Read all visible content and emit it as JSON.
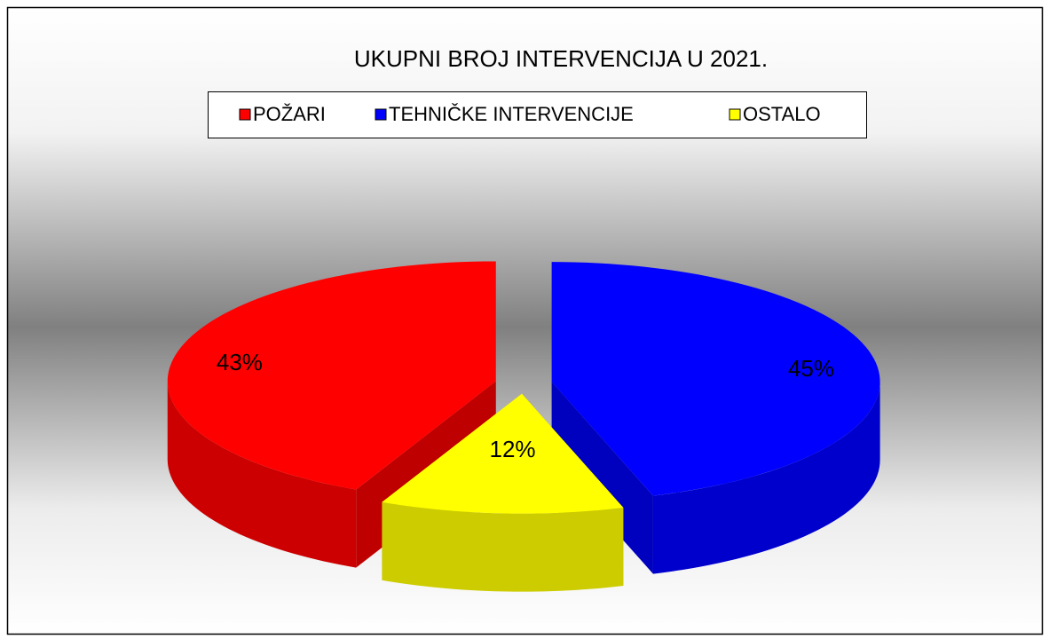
{
  "chart_data": {
    "type": "pie",
    "title": "UKUPNI BROJ INTERVENCIJA U 2021.",
    "categories": [
      "POŽARI",
      "TEHNIČKE INTERVENCIJE",
      "OSTALO"
    ],
    "values": [
      43,
      45,
      12
    ],
    "value_labels": [
      "43%",
      "45%",
      "12%"
    ],
    "colors": [
      "#ff0000",
      "#0000ff",
      "#ffff00"
    ],
    "legend": "top",
    "three_d": true,
    "exploded": true
  }
}
